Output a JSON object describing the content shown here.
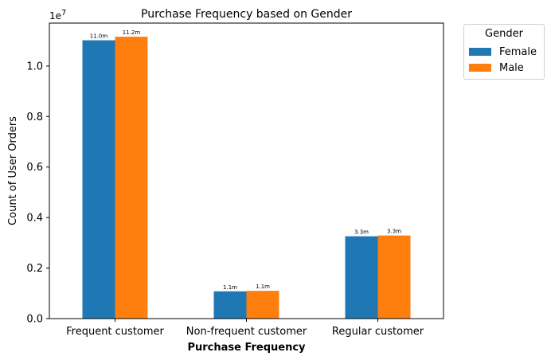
{
  "chart_data": {
    "type": "bar",
    "title": "Purchase Frequency based on Gender",
    "xlabel": "Purchase Frequency",
    "ylabel": "Count of User Orders",
    "y_offset_label": "1e7",
    "categories": [
      "Frequent customer",
      "Non-frequent customer",
      "Regular customer"
    ],
    "series": [
      {
        "name": "Female",
        "color": "#1f77b4",
        "values": [
          11020000,
          1080000,
          3260000
        ],
        "labels": [
          "11.0m",
          "1.1m",
          "3.3m"
        ]
      },
      {
        "name": "Male",
        "color": "#ff7f0e",
        "values": [
          11160000,
          1100000,
          3290000
        ],
        "labels": [
          "11.2m",
          "1.1m",
          "3.3m"
        ]
      }
    ],
    "ylim": [
      0,
      11700000
    ],
    "yticks": [
      0,
      2000000,
      4000000,
      6000000,
      8000000,
      10000000
    ],
    "ytick_labels": [
      "0.0",
      "0.2",
      "0.4",
      "0.6",
      "0.8",
      "1.0"
    ],
    "legend": {
      "title": "Gender",
      "placement": "outside-top-right"
    },
    "grid": false
  }
}
